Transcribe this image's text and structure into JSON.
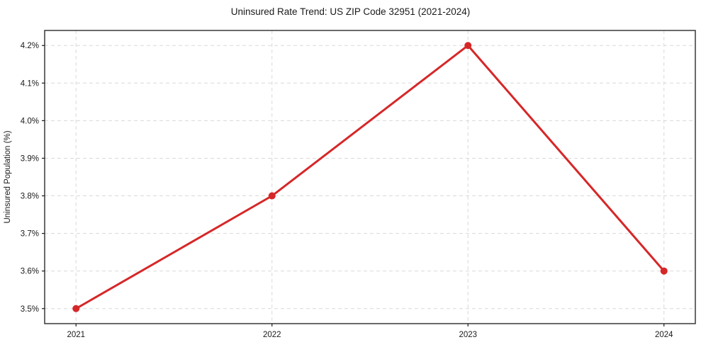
{
  "chart_data": {
    "type": "line",
    "title": "Uninsured Rate Trend: US ZIP Code 32951 (2021-2024)",
    "xlabel": "",
    "ylabel": "Uninsured Population (%)",
    "x": [
      2021,
      2022,
      2023,
      2024
    ],
    "values": [
      3.5,
      3.8,
      4.2,
      3.6
    ],
    "xticks": [
      2021,
      2022,
      2023,
      2024
    ],
    "xtick_labels": [
      "2021",
      "2022",
      "2023",
      "2024"
    ],
    "yticks": [
      3.5,
      3.6,
      3.7,
      3.8,
      3.9,
      4.0,
      4.1,
      4.2
    ],
    "ytick_labels": [
      "3.5%",
      "3.6%",
      "3.7%",
      "3.8%",
      "3.9%",
      "4.0%",
      "4.1%",
      "4.2%"
    ],
    "xlim": [
      2020.84,
      2024.16
    ],
    "ylim": [
      3.46,
      4.24
    ],
    "grid": true,
    "grid_style": "dashed",
    "legend": "none",
    "marker": "circle",
    "marker_radius": 5,
    "line_width": 3,
    "colors": {
      "line": "#d62728",
      "grid": "#d9d9d9",
      "spine": "#1a1a1a",
      "text": "#1a1a1a",
      "background": "#ffffff"
    }
  }
}
